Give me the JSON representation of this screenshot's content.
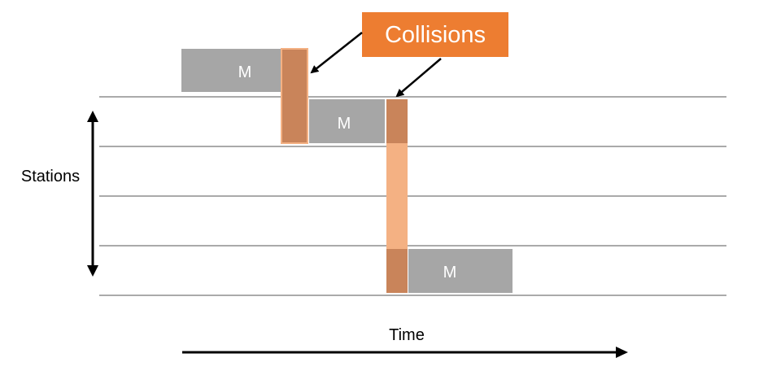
{
  "diagram": {
    "callout": {
      "text": "Collisions",
      "fill": "#ED7D31",
      "text_color": "#FFFFFF"
    },
    "y_axis_label": "Stations",
    "x_axis_label": "Time",
    "message_label": "M",
    "colors": {
      "message_block": "#A6A6A6",
      "collision_overlap": "#C9845A",
      "collision_light": "#F4B183",
      "line": "#000000",
      "lane_line": "#555555"
    }
  }
}
